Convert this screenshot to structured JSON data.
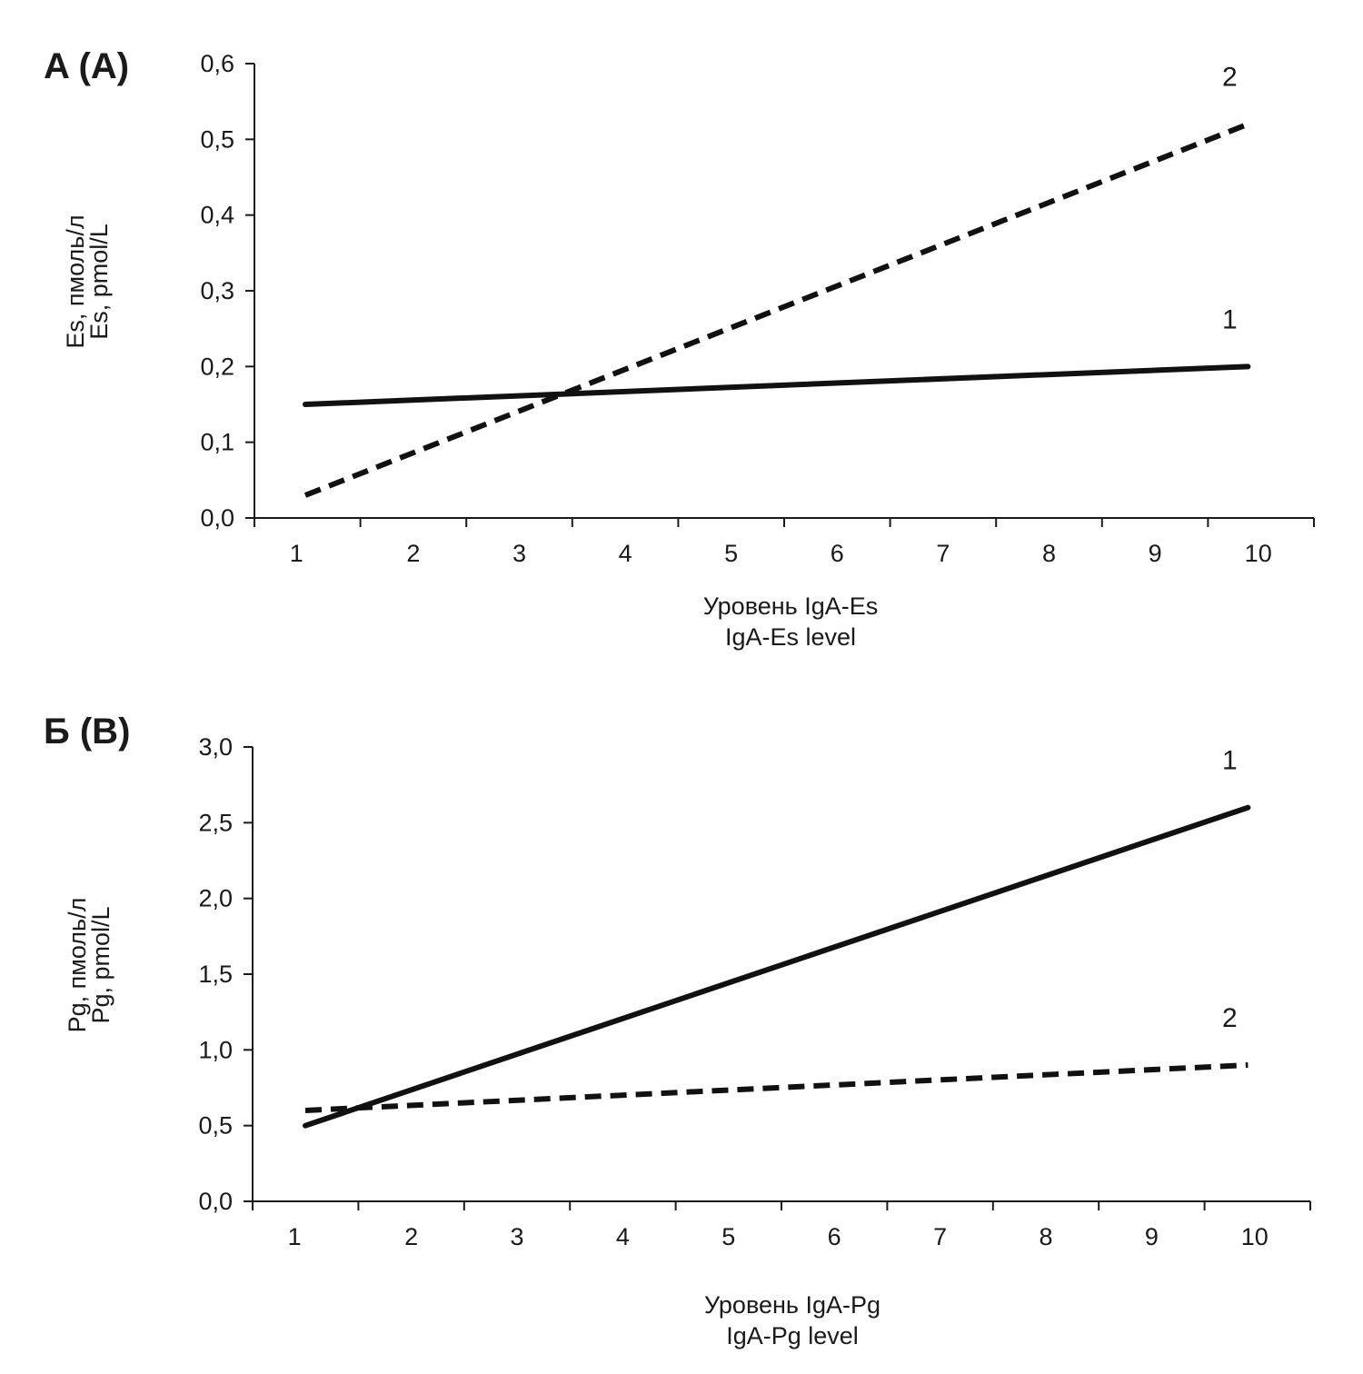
{
  "chart_data": [
    {
      "panel": "A (A)",
      "type": "line",
      "categories": [
        "1",
        "2",
        "3",
        "4",
        "5",
        "6",
        "7",
        "8",
        "9",
        "10"
      ],
      "ylim": [
        0,
        0.6
      ],
      "y_ticks": [
        "0,0",
        "0,1",
        "0,2",
        "0,3",
        "0,4",
        "0,5",
        "0,6"
      ],
      "ylabel": [
        "Es, пмоль/л",
        "Es, pmol/L"
      ],
      "xlabel": [
        "Уровень IgA-Es",
        "IgA-Es level"
      ],
      "series": [
        {
          "name": "1",
          "style": "solid",
          "x": [
            1,
            10
          ],
          "values": [
            0.15,
            0.2
          ]
        },
        {
          "name": "2",
          "style": "dashed",
          "x": [
            1,
            10
          ],
          "values": [
            0.03,
            0.52
          ]
        }
      ]
    },
    {
      "panel": "Б (B)",
      "type": "line",
      "categories": [
        "1",
        "2",
        "3",
        "4",
        "5",
        "6",
        "7",
        "8",
        "9",
        "10"
      ],
      "ylim": [
        0,
        3.0
      ],
      "y_ticks": [
        "0,0",
        "0,5",
        "1,0",
        "1,5",
        "2,0",
        "2,5",
        "3,0"
      ],
      "ylabel": [
        "Pg, пмоль/л",
        "Pg, pmol/L"
      ],
      "xlabel": [
        "Уровень IgA-Pg",
        "IgA-Pg level"
      ],
      "series": [
        {
          "name": "1",
          "style": "solid",
          "x": [
            1,
            10
          ],
          "values": [
            0.5,
            2.6
          ]
        },
        {
          "name": "2",
          "style": "dashed",
          "x": [
            1,
            10
          ],
          "values": [
            0.6,
            0.9
          ]
        }
      ]
    }
  ]
}
